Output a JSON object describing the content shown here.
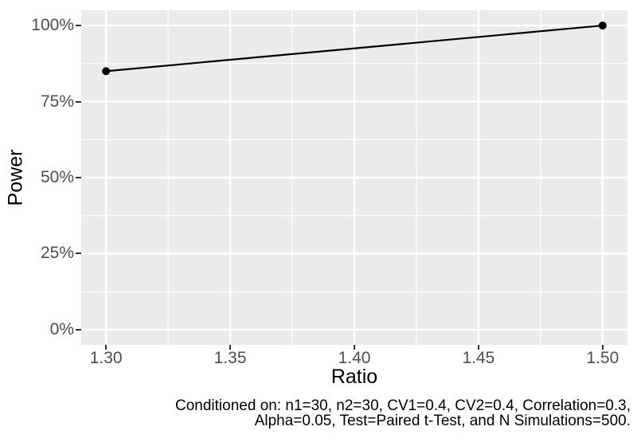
{
  "chart_data": {
    "type": "line",
    "title": "",
    "xlabel": "Ratio",
    "ylabel": "Power",
    "series": [
      {
        "name": "Power",
        "points": [
          {
            "x": 1.3,
            "y": 0.85
          },
          {
            "x": 1.5,
            "y": 1.0
          }
        ]
      }
    ],
    "x_ticks": [
      {
        "value": 1.3,
        "label": "1.30"
      },
      {
        "value": 1.35,
        "label": "1.35"
      },
      {
        "value": 1.4,
        "label": "1.40"
      },
      {
        "value": 1.45,
        "label": "1.45"
      },
      {
        "value": 1.5,
        "label": "1.50"
      }
    ],
    "y_ticks": [
      {
        "value": 0.0,
        "label": "0%"
      },
      {
        "value": 0.25,
        "label": "25%"
      },
      {
        "value": 0.5,
        "label": "50%"
      },
      {
        "value": 0.75,
        "label": "75%"
      },
      {
        "value": 1.0,
        "label": "100%"
      }
    ],
    "xlim": [
      1.29,
      1.51
    ],
    "ylim": [
      -0.05,
      1.05
    ],
    "x_minor_breaks": [
      1.325,
      1.375,
      1.425,
      1.475
    ],
    "y_minor_breaks": [
      0.125,
      0.375,
      0.625,
      0.875
    ],
    "grid": "major-and-minor",
    "legend": false,
    "caption_lines": [
      "Conditioned on: n1=30, n2=30, CV1=0.4, CV2=0.4, Correlation=0.3,",
      "Alpha=0.05, Test=Paired t-Test, and N Simulations=500."
    ],
    "colors": {
      "panel_background": "#EBEBEB",
      "gridlines": "#FFFFFF",
      "axis_text": "#4D4D4D",
      "axis_title": "#000000",
      "tick_marks": "#333333",
      "series_line": "#000000",
      "page_background": "#FFFFFF"
    }
  }
}
